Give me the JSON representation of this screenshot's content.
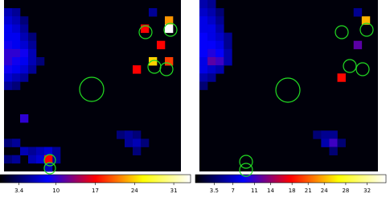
{
  "chart_data": [
    {
      "type": "heatmap",
      "grid_size": [
        22,
        21
      ],
      "colormap": [
        "#000000",
        "#0000ff",
        "#ff0000",
        "#ffff00",
        "#ffffff"
      ],
      "clim": [
        0,
        34
      ],
      "cticks": [
        3.4,
        10,
        17,
        24,
        31
      ],
      "cells": [
        [
          0,
          1,
          6
        ],
        [
          1,
          1,
          5
        ],
        [
          0,
          2,
          7
        ],
        [
          1,
          2,
          6
        ],
        [
          2,
          2,
          4
        ],
        [
          0,
          3,
          8
        ],
        [
          1,
          3,
          7
        ],
        [
          2,
          3,
          5
        ],
        [
          0,
          4,
          8
        ],
        [
          1,
          4,
          8
        ],
        [
          2,
          4,
          6
        ],
        [
          3,
          4,
          4
        ],
        [
          0,
          5,
          9
        ],
        [
          1,
          5,
          8
        ],
        [
          2,
          5,
          7
        ],
        [
          3,
          5,
          5
        ],
        [
          0,
          6,
          10
        ],
        [
          1,
          6,
          10
        ],
        [
          2,
          6,
          9
        ],
        [
          3,
          6,
          6
        ],
        [
          0,
          7,
          10
        ],
        [
          1,
          7,
          9
        ],
        [
          2,
          7,
          8
        ],
        [
          3,
          7,
          6
        ],
        [
          4,
          7,
          4
        ],
        [
          0,
          8,
          9
        ],
        [
          1,
          8,
          8
        ],
        [
          2,
          8,
          7
        ],
        [
          3,
          8,
          5
        ],
        [
          0,
          9,
          7
        ],
        [
          1,
          9,
          6
        ],
        [
          2,
          9,
          5
        ],
        [
          0,
          10,
          5
        ],
        [
          1,
          10,
          4
        ],
        [
          2,
          14,
          10
        ],
        [
          0,
          17,
          4
        ],
        [
          1,
          17,
          5
        ],
        [
          2,
          18,
          6
        ],
        [
          3,
          18,
          5
        ],
        [
          4,
          18,
          6
        ],
        [
          5,
          18,
          7
        ],
        [
          6,
          18,
          5
        ],
        [
          0,
          19,
          4
        ],
        [
          1,
          19,
          5
        ],
        [
          3,
          19,
          6
        ],
        [
          4,
          19,
          7
        ],
        [
          6,
          19,
          5
        ],
        [
          5,
          19,
          17
        ],
        [
          5,
          20,
          6
        ],
        [
          14,
          16,
          4
        ],
        [
          15,
          16,
          5
        ],
        [
          16,
          16,
          4
        ],
        [
          15,
          17,
          5
        ],
        [
          16,
          17,
          6
        ],
        [
          17,
          17,
          4
        ],
        [
          16,
          18,
          4
        ],
        [
          17,
          3,
          17
        ],
        [
          20,
          2,
          22
        ],
        [
          20,
          3,
          34
        ],
        [
          19,
          5,
          17
        ],
        [
          18,
          7,
          24
        ],
        [
          20,
          7,
          19
        ],
        [
          16,
          8,
          17
        ],
        [
          18,
          1,
          5
        ]
      ]
    },
    {
      "type": "heatmap",
      "grid_size": [
        22,
        21
      ],
      "colormap": [
        "#000000",
        "#0000ff",
        "#ff0000",
        "#ffff00",
        "#ffffff"
      ],
      "clim": [
        0,
        35.5
      ],
      "cticks": [
        3.5,
        7,
        11,
        14,
        18,
        21,
        24,
        28,
        32
      ],
      "cells": [
        [
          0,
          0,
          6
        ],
        [
          1,
          0,
          5
        ],
        [
          0,
          1,
          7
        ],
        [
          1,
          1,
          6
        ],
        [
          2,
          1,
          4
        ],
        [
          0,
          2,
          8
        ],
        [
          1,
          2,
          7
        ],
        [
          2,
          2,
          5
        ],
        [
          0,
          3,
          8
        ],
        [
          1,
          3,
          8
        ],
        [
          2,
          3,
          6
        ],
        [
          0,
          4,
          9
        ],
        [
          1,
          4,
          8
        ],
        [
          2,
          4,
          7
        ],
        [
          3,
          4,
          5
        ],
        [
          0,
          5,
          9
        ],
        [
          1,
          5,
          9
        ],
        [
          2,
          5,
          8
        ],
        [
          3,
          5,
          5
        ],
        [
          0,
          6,
          9
        ],
        [
          1,
          6,
          10
        ],
        [
          2,
          6,
          9
        ],
        [
          3,
          6,
          6
        ],
        [
          0,
          7,
          8
        ],
        [
          1,
          7,
          12
        ],
        [
          2,
          7,
          11
        ],
        [
          3,
          7,
          6
        ],
        [
          0,
          8,
          8
        ],
        [
          1,
          8,
          7
        ],
        [
          2,
          8,
          6
        ],
        [
          0,
          9,
          6
        ],
        [
          1,
          9,
          5
        ],
        [
          0,
          10,
          4
        ],
        [
          14,
          16,
          4
        ],
        [
          15,
          16,
          5
        ],
        [
          16,
          16,
          5
        ],
        [
          15,
          17,
          6
        ],
        [
          16,
          17,
          11
        ],
        [
          17,
          17,
          4
        ],
        [
          16,
          18,
          4
        ],
        [
          20,
          2,
          24
        ],
        [
          19,
          5,
          12
        ],
        [
          17,
          9,
          18
        ],
        [
          19,
          1,
          5
        ]
      ]
    }
  ]
}
